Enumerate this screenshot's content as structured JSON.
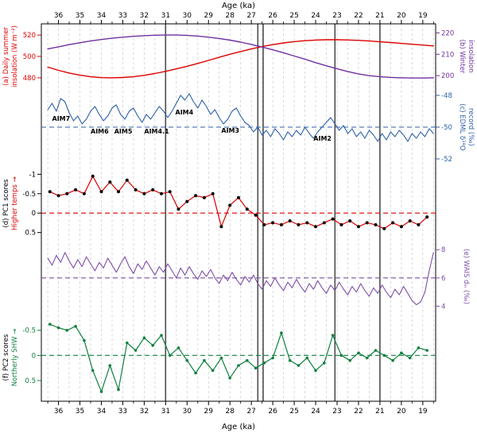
{
  "figure": {
    "axis_title": "Age (ka)",
    "x_domain": [
      36.8,
      18.4
    ],
    "x_ticks": [
      36,
      35,
      34,
      33,
      32,
      31,
      30,
      29,
      28,
      27,
      26,
      25,
      24,
      23,
      22,
      21,
      20,
      19
    ],
    "grid_start": 36.5,
    "grid_end": 18.5,
    "grid_step": 0.5,
    "grid_color": "#c9c9c9",
    "event_line_color": "#4d4d4d",
    "event_line_ages": [
      31.0,
      26.7,
      26.45,
      23.1,
      21.0
    ]
  },
  "chart_data": [
    {
      "id": "insolation",
      "type": "line",
      "labels": {
        "left1": "(a) Daily summer",
        "left2": "insolation (W m⁻²)",
        "right1": "(b) Winter",
        "right2": "insolation"
      },
      "series": [
        {
          "name": "summer-insolation",
          "color": "#dd0000",
          "width": 1.4,
          "x_start": 36.5,
          "x_step": -0.5,
          "axis": {
            "side": "left",
            "yrange": [
              526,
              474
            ],
            "tick_values": [
              520,
              500,
              480
            ],
            "tick_labels": [
              "520",
              "500",
              "480"
            ],
            "color": "#dd0000"
          },
          "values": [
            490,
            487,
            484.5,
            482.5,
            481,
            480.2,
            480,
            480.3,
            481,
            482.3,
            484,
            486,
            488.3,
            490.8,
            493.5,
            496.3,
            499.2,
            502,
            504.6,
            507,
            509.2,
            511,
            512.6,
            513.8,
            514.7,
            515.3,
            515.6,
            515.6,
            515.4,
            515,
            514.4,
            513.7,
            513,
            512.2,
            511.4,
            510.6,
            509.8
          ]
        },
        {
          "name": "winter-insolation",
          "color": "#7030a0",
          "width": 1.4,
          "x_start": 36.5,
          "x_step": -0.5,
          "axis": {
            "side": "right",
            "yrange": [
              222,
              196
            ],
            "tick_values": [
              220,
              210,
              200
            ],
            "tick_labels": [
              "220",
              "210",
              "200"
            ],
            "color": "#7030a0"
          },
          "values": [
            212.5,
            213.5,
            214.5,
            215.4,
            216.2,
            216.9,
            217.5,
            218.0,
            218.4,
            218.7,
            218.9,
            219.0,
            219.0,
            218.8,
            218.5,
            218.0,
            217.4,
            216.6,
            215.7,
            214.6,
            213.4,
            212.1,
            210.7,
            209.2,
            207.7,
            206.1,
            204.6,
            203.2,
            201.9,
            200.8,
            200.0,
            199.5,
            199.2,
            199.0,
            198.9,
            198.9,
            199.0
          ]
        }
      ]
    },
    {
      "id": "edml",
      "type": "line",
      "labels": {
        "right1": "(c) EDML δ¹⁸O",
        "right2": "record (‰)"
      },
      "ref_line": {
        "value": -50,
        "color": "#2b5fa8"
      },
      "annotations": [
        {
          "text": "AIM7",
          "age": 36.3,
          "value": -49.6
        },
        {
          "text": "AIM6",
          "age": 34.5,
          "value": -50.4
        },
        {
          "text": "AIM5",
          "age": 33.4,
          "value": -50.4
        },
        {
          "text": "AIM4.1",
          "age": 32.0,
          "value": -50.4
        },
        {
          "text": "AIM4",
          "age": 30.55,
          "value": -49.2
        },
        {
          "text": "AIM3",
          "age": 28.4,
          "value": -50.35
        },
        {
          "text": "AIM2",
          "age": 24.1,
          "value": -50.85
        }
      ],
      "series": [
        {
          "name": "edml-d18o",
          "color": "#2b5fa8",
          "width": 1.1,
          "x_start": 36.5,
          "x_step": -0.2,
          "axis": {
            "side": "right",
            "yrange": [
              -47.4,
              -52.6
            ],
            "tick_values": [
              -48,
              -50,
              -52
            ],
            "tick_labels": [
              "-48",
              "-50",
              "-52"
            ],
            "color": "#2b5fa8"
          },
          "values": [
            -48.9,
            -48.5,
            -49.0,
            -48.2,
            -48.4,
            -49.1,
            -49.6,
            -49.3,
            -49.8,
            -49.5,
            -49.0,
            -48.7,
            -49.2,
            -49.6,
            -49.3,
            -48.8,
            -48.6,
            -49.2,
            -49.5,
            -49.0,
            -48.8,
            -49.3,
            -49.7,
            -49.2,
            -49.5,
            -49.1,
            -48.7,
            -49.0,
            -49.4,
            -49.0,
            -48.5,
            -48.0,
            -48.3,
            -47.9,
            -48.4,
            -48.8,
            -48.3,
            -48.7,
            -49.2,
            -48.9,
            -49.4,
            -49.8,
            -49.5,
            -49.0,
            -48.8,
            -49.3,
            -49.7,
            -49.9,
            -50.3,
            -50.0,
            -50.5,
            -50.2,
            -50.6,
            -50.1,
            -50.4,
            -50.8,
            -50.3,
            -50.6,
            -50.2,
            -50.5,
            -50.0,
            -50.4,
            -50.7,
            -50.3,
            -50.0,
            -49.7,
            -49.4,
            -49.8,
            -50.2,
            -49.9,
            -50.4,
            -50.1,
            -50.6,
            -50.3,
            -50.7,
            -50.2,
            -50.5,
            -50.9,
            -50.4,
            -50.8,
            -50.3,
            -50.6,
            -50.2,
            -50.5,
            -50.9,
            -50.4,
            -50.7,
            -50.3,
            -50.6,
            -50.1,
            -50.4
          ]
        }
      ]
    },
    {
      "id": "pc1",
      "type": "line+marker",
      "labels": {
        "left1": "(d) PC1 scores",
        "left2": "Higher temps →"
      },
      "ref_line": {
        "value": 0,
        "color": "#dd0000"
      },
      "series": [
        {
          "name": "pc1-scores",
          "color": "#dd0000",
          "width": 1.2,
          "marker": "#000000",
          "marker_r": 2,
          "x_start": 36.4,
          "x_step": -0.4,
          "axis": {
            "side": "left",
            "yrange": [
              -1.15,
              0.65
            ],
            "tick_values": [
              -1,
              -0.5,
              0,
              0.5
            ],
            "tick_labels": [
              "-1",
              "-0.5",
              "0",
              "0.5"
            ],
            "color": "#000000"
          },
          "values": [
            -0.55,
            -0.45,
            -0.5,
            -0.6,
            -0.5,
            -0.95,
            -0.55,
            -0.8,
            -0.55,
            -0.85,
            -0.6,
            -0.5,
            -0.6,
            -0.5,
            -0.55,
            -0.1,
            -0.3,
            -0.45,
            -0.4,
            -0.5,
            0.35,
            -0.2,
            -0.4,
            -0.1,
            0.05,
            0.3,
            0.25,
            0.3,
            0.2,
            0.3,
            0.25,
            0.35,
            0.25,
            0.15,
            0.3,
            0.2,
            0.35,
            0.25,
            0.3,
            0.4,
            0.25,
            0.35,
            0.2,
            0.3,
            0.1
          ]
        }
      ]
    },
    {
      "id": "wais",
      "type": "line",
      "labels": {
        "right1": "(e) WAIS dₗₙ (‰)"
      },
      "ref_line": {
        "value": 6,
        "color": "#7d4fa6"
      },
      "series": [
        {
          "name": "wais-dln",
          "color": "#7d4fa6",
          "width": 1.1,
          "x_start": 36.5,
          "x_step": -0.2,
          "axis": {
            "side": "right",
            "yrange": [
              8.8,
              3.4
            ],
            "tick_values": [
              8,
              6,
              4
            ],
            "tick_labels": [
              "8",
              "6",
              "4"
            ],
            "color": "#7d4fa6"
          },
          "values": [
            7.4,
            6.9,
            7.6,
            7.1,
            7.8,
            7.2,
            6.7,
            7.3,
            6.8,
            7.5,
            7.0,
            6.5,
            7.1,
            6.7,
            7.4,
            6.9,
            6.4,
            7.0,
            7.5,
            6.8,
            6.3,
            7.0,
            6.6,
            7.2,
            6.7,
            6.2,
            6.8,
            6.4,
            7.0,
            6.5,
            6.0,
            6.7,
            6.2,
            6.8,
            6.3,
            5.9,
            6.5,
            6.1,
            6.6,
            6.0,
            5.6,
            6.2,
            5.8,
            6.4,
            5.9,
            5.5,
            6.1,
            5.7,
            6.2,
            5.6,
            5.2,
            5.8,
            5.4,
            6.0,
            5.5,
            5.1,
            5.7,
            5.3,
            5.9,
            5.4,
            5.0,
            5.6,
            5.2,
            5.8,
            5.3,
            4.9,
            5.5,
            5.1,
            5.7,
            5.2,
            4.8,
            5.4,
            5.0,
            5.6,
            5.1,
            4.7,
            5.3,
            4.9,
            5.5,
            5.0,
            4.6,
            5.2,
            4.8,
            5.4,
            4.9,
            4.4,
            4.1,
            4.3,
            5.0,
            6.5,
            7.8
          ]
        }
      ]
    },
    {
      "id": "pc2",
      "type": "line+marker",
      "labels": {
        "left1": "(f) PC2 scores",
        "left2": "Northerly SHW →"
      },
      "ref_line": {
        "value": 0,
        "color": "#108040"
      },
      "series": [
        {
          "name": "pc2-scores",
          "color": "#108040",
          "width": 1.2,
          "marker": "#108040",
          "marker_r": 1.8,
          "x_start": 36.4,
          "x_step": -0.4,
          "axis": {
            "side": "left",
            "yrange": [
              -0.78,
              0.88
            ],
            "tick_values": [
              -0.5,
              0,
              0.5
            ],
            "tick_labels": [
              "-0.5",
              "0",
              "0.5"
            ],
            "color": "#108040"
          },
          "values": [
            -0.62,
            -0.55,
            -0.5,
            -0.58,
            -0.3,
            0.3,
            0.72,
            0.2,
            0.68,
            -0.25,
            -0.1,
            -0.35,
            -0.2,
            -0.4,
            0.0,
            -0.15,
            0.1,
            0.35,
            0.1,
            0.3,
            0.05,
            0.45,
            0.2,
            0.1,
            0.25,
            0.15,
            0.05,
            -0.45,
            0.1,
            0.2,
            0.05,
            0.3,
            0.15,
            -0.4,
            0.0,
            0.1,
            -0.05,
            0.05,
            -0.1,
            0.0,
            0.1,
            -0.05,
            0.05,
            -0.15,
            -0.1
          ]
        }
      ]
    }
  ]
}
